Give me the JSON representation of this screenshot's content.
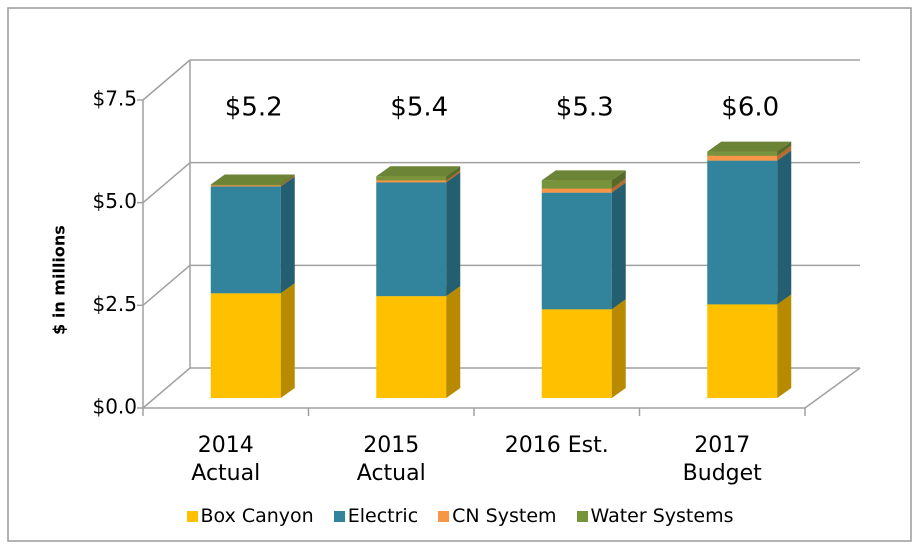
{
  "chart_data": {
    "type": "bar3d_stacked",
    "y_axis_label": "$ in millions",
    "categories": [
      "2014 Actual",
      "2015 Actual",
      "2016 Est.",
      "2017 Budget"
    ],
    "series": [
      {
        "name": "Box Canyon",
        "color": "#ffc000",
        "values": [
          2.55,
          2.48,
          2.16,
          2.28
        ]
      },
      {
        "name": "Electric",
        "color": "#31849b",
        "values": [
          2.6,
          2.77,
          2.84,
          3.5
        ]
      },
      {
        "name": "CN System",
        "color": "#f79646",
        "values": [
          0.03,
          0.05,
          0.1,
          0.12
        ]
      },
      {
        "name": "Water Systems",
        "color": "#77933c",
        "values": [
          0.02,
          0.1,
          0.2,
          0.1
        ]
      }
    ],
    "total_labels": [
      "$5.2",
      "$5.4",
      "$5.3",
      "$6.0"
    ],
    "ylim": [
      0,
      7.5
    ],
    "yticks": [
      {
        "value": 0,
        "label": "$0.0"
      },
      {
        "value": 2.5,
        "label": "$2.5"
      },
      {
        "value": 5,
        "label": "$5.0"
      },
      {
        "value": 7.5,
        "label": "$7.5"
      }
    ],
    "grid": true,
    "legend": "bottom"
  }
}
